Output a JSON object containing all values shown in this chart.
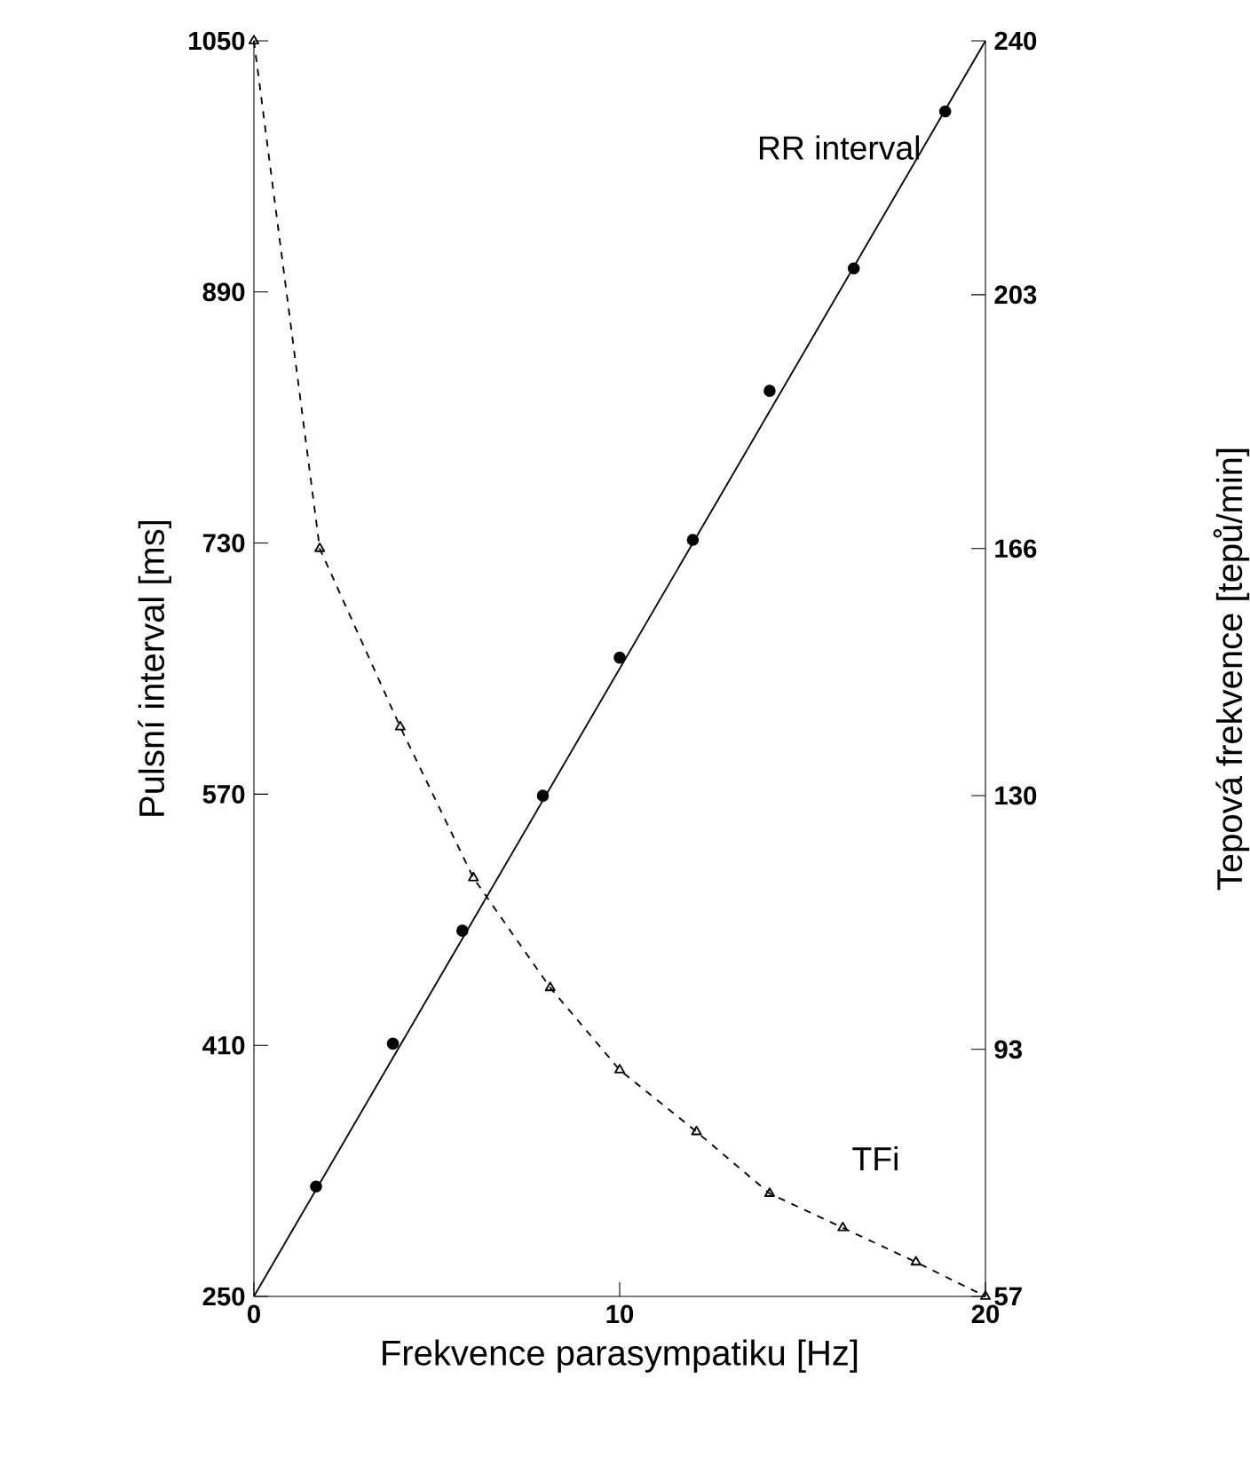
{
  "chart_data": {
    "type": "line",
    "xlabel": "Frekvence parasympatiku [Hz]",
    "ylabel": "Pulsní interval [ms]",
    "y2label": "Tepová frekvence [tepů/min]",
    "xlim": [
      0,
      20
    ],
    "xticks": [
      0,
      10,
      20
    ],
    "ylim": [
      250,
      1050
    ],
    "yticks": [
      250,
      410,
      570,
      730,
      890,
      1050
    ],
    "y2lim": [
      57,
      240
    ],
    "y2ticks": [
      57,
      93,
      130,
      166,
      203,
      240
    ],
    "series": [
      {
        "name": "RR interval",
        "color": "#000000",
        "x": [
          0,
          20
        ],
        "values": [
          250,
          1050
        ],
        "marker": "none",
        "line_style": "solid"
      },
      {
        "type": "scatter",
        "color": "#000000",
        "x": [
          1.7,
          3.8,
          5.7,
          7.9,
          10,
          12,
          14.1,
          16.4,
          18.9
        ],
        "values": [
          320,
          411,
          483,
          569,
          657,
          732,
          827,
          905,
          1005
        ],
        "marker": "circle"
      },
      {
        "name": "TFi",
        "axis": "y2",
        "color": "#000000",
        "x": [
          0,
          1.8,
          4,
          6,
          8.1,
          10,
          12.1,
          14.1,
          16.1,
          18.1,
          20
        ],
        "values": [
          240,
          166,
          140,
          118,
          102,
          90,
          81,
          72,
          67,
          62,
          57
        ],
        "marker": "triangle",
        "line_style": "dashed"
      }
    ]
  }
}
